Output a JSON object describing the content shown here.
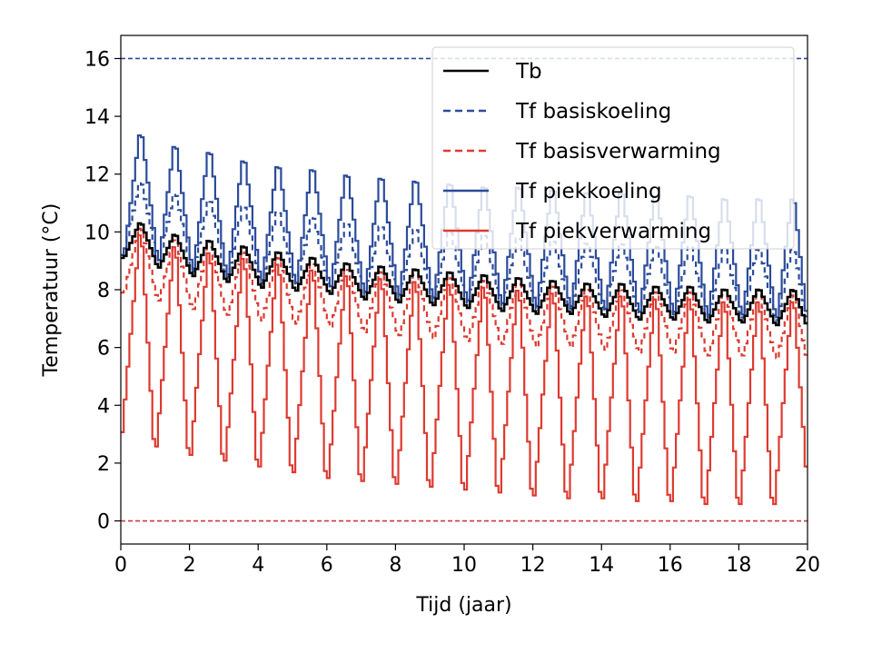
{
  "chart_data": {
    "type": "line",
    "title": "",
    "xlabel": "Tijd (jaar)",
    "ylabel": "Temperatuur (°C)",
    "xlim": [
      0,
      20
    ],
    "ylim": [
      -0.8,
      16.8
    ],
    "xticks": [
      0,
      2,
      4,
      6,
      8,
      10,
      12,
      14,
      16,
      18,
      20
    ],
    "yticks": [
      0,
      2,
      4,
      6,
      8,
      10,
      12,
      14,
      16
    ],
    "grid": false,
    "legend_position": "top-right",
    "limits": [
      {
        "y": 16,
        "color": "#2b4b9b",
        "style": "dashed"
      },
      {
        "y": 0,
        "color": "#cd3a3a",
        "style": "dashed"
      }
    ],
    "series": [
      {
        "name": "Tb",
        "color": "#000000",
        "style": "solid",
        "peak_years": [
          0.58,
          1.58,
          2.58,
          3.58,
          4.58,
          5.58,
          6.58,
          7.58,
          8.58,
          9.58,
          10.58,
          11.58,
          12.58,
          13.58,
          14.58,
          15.58,
          16.58,
          17.58,
          18.58,
          19.58
        ],
        "peak_values": [
          10.4,
          10.0,
          9.8,
          9.6,
          9.4,
          9.2,
          9.0,
          8.9,
          8.8,
          8.7,
          8.6,
          8.5,
          8.4,
          8.3,
          8.3,
          8.2,
          8.2,
          8.1,
          8.1,
          8.1
        ],
        "trough_years": [
          0.1,
          1.1,
          2.1,
          3.1,
          4.1,
          5.1,
          6.1,
          7.1,
          8.1,
          9.1,
          10.1,
          11.1,
          12.1,
          13.1,
          14.1,
          15.1,
          16.1,
          17.1,
          18.1,
          19.1,
          20.0
        ],
        "trough_values": [
          9.1,
          8.7,
          8.4,
          8.2,
          8.0,
          7.9,
          7.8,
          7.6,
          7.5,
          7.4,
          7.3,
          7.2,
          7.1,
          7.1,
          7.0,
          6.9,
          6.9,
          6.8,
          6.8,
          6.7,
          6.7
        ]
      },
      {
        "name": "Tf basiskoeling",
        "color": "#2b4b9b",
        "style": "dashed",
        "peak_years": [
          0.58,
          1.58,
          2.58,
          3.58,
          4.58,
          5.58,
          6.58,
          7.58,
          8.58,
          9.58,
          10.58,
          11.58,
          12.58,
          13.58,
          14.58,
          15.58,
          16.58,
          17.58,
          18.58,
          19.58
        ],
        "peak_values": [
          11.9,
          11.5,
          11.3,
          11.1,
          10.9,
          10.7,
          10.5,
          10.4,
          10.3,
          10.2,
          10.1,
          10.0,
          9.9,
          9.8,
          9.8,
          9.7,
          9.7,
          9.6,
          9.6,
          9.6
        ],
        "trough_years": [
          0.1,
          1.1,
          2.1,
          3.1,
          4.1,
          5.1,
          6.1,
          7.1,
          8.1,
          9.1,
          10.1,
          11.1,
          12.1,
          13.1,
          14.1,
          15.1,
          16.1,
          17.1,
          18.1,
          19.1,
          20.0
        ],
        "trough_values": [
          9.2,
          8.8,
          8.5,
          8.3,
          8.1,
          8.0,
          7.9,
          7.7,
          7.6,
          7.5,
          7.4,
          7.3,
          7.2,
          7.2,
          7.1,
          7.0,
          7.0,
          6.9,
          6.9,
          6.8,
          6.8
        ]
      },
      {
        "name": "Tf basisverwarming",
        "color": "#dd3a30",
        "style": "dashed",
        "peak_years": [
          0.58,
          1.58,
          2.58,
          3.58,
          4.58,
          5.58,
          6.58,
          7.58,
          8.58,
          9.58,
          10.58,
          11.58,
          12.58,
          13.58,
          14.58,
          15.58,
          16.58,
          17.58,
          18.58,
          19.58
        ],
        "peak_values": [
          10.3,
          9.9,
          9.7,
          9.5,
          9.3,
          9.1,
          8.9,
          8.8,
          8.7,
          8.6,
          8.5,
          8.4,
          8.3,
          8.2,
          8.2,
          8.1,
          8.1,
          8.0,
          8.0,
          8.0
        ],
        "trough_years": [
          0.1,
          1.1,
          2.1,
          3.1,
          4.1,
          5.1,
          6.1,
          7.1,
          8.1,
          9.1,
          10.1,
          11.1,
          12.1,
          13.1,
          14.1,
          15.1,
          16.1,
          17.1,
          18.1,
          19.1,
          20.0
        ],
        "trough_values": [
          7.9,
          7.5,
          7.2,
          7.0,
          6.8,
          6.7,
          6.6,
          6.4,
          6.3,
          6.2,
          6.1,
          6.0,
          5.9,
          5.9,
          5.8,
          5.7,
          5.7,
          5.6,
          5.6,
          5.5,
          5.5
        ]
      },
      {
        "name": "Tf piekkoeling",
        "color": "#2b4b9b",
        "style": "solid",
        "peak_years": [
          0.58,
          1.58,
          2.58,
          3.58,
          4.58,
          5.58,
          6.58,
          7.58,
          8.58,
          9.58,
          10.58,
          11.58,
          12.58,
          13.58,
          14.58,
          15.58,
          16.58,
          17.58,
          18.58,
          19.58
        ],
        "peak_values": [
          13.7,
          13.3,
          13.1,
          12.8,
          12.6,
          12.5,
          12.3,
          12.2,
          12.1,
          12.0,
          11.9,
          11.9,
          11.8,
          11.7,
          11.7,
          11.6,
          11.6,
          11.5,
          11.5,
          11.5
        ],
        "trough_years": [
          0.1,
          1.1,
          2.1,
          3.1,
          4.1,
          5.1,
          6.1,
          7.1,
          8.1,
          9.1,
          10.1,
          11.1,
          12.1,
          13.1,
          14.1,
          15.1,
          16.1,
          17.1,
          18.1,
          19.1,
          20.0
        ],
        "trough_values": [
          9.2,
          8.8,
          8.5,
          8.3,
          8.1,
          8.0,
          7.9,
          7.7,
          7.6,
          7.5,
          7.4,
          7.3,
          7.2,
          7.2,
          7.1,
          7.0,
          7.0,
          6.9,
          6.9,
          6.8,
          6.8
        ]
      },
      {
        "name": "Tf piekverwarming",
        "color": "#dd3a30",
        "style": "solid",
        "peak_years": [
          0.58,
          1.58,
          2.58,
          3.58,
          4.58,
          5.58,
          6.58,
          7.58,
          8.58,
          9.58,
          10.58,
          11.58,
          12.58,
          13.58,
          14.58,
          15.58,
          16.58,
          17.58,
          18.58,
          19.58
        ],
        "peak_values": [
          10.4,
          10.0,
          9.8,
          9.6,
          9.4,
          9.2,
          9.0,
          8.9,
          8.8,
          8.7,
          8.6,
          8.5,
          8.4,
          8.3,
          8.3,
          8.2,
          8.2,
          8.1,
          8.1,
          8.1
        ],
        "trough_years": [
          0.0,
          1.0,
          2.0,
          3.0,
          4.0,
          5.0,
          6.0,
          7.0,
          8.0,
          9.0,
          10.0,
          11.0,
          12.0,
          13.0,
          14.0,
          15.0,
          16.0,
          17.0,
          18.0,
          19.0,
          20.0
        ],
        "trough_values": [
          2.5,
          2.0,
          1.7,
          1.5,
          1.3,
          1.1,
          0.9,
          0.8,
          0.7,
          0.6,
          0.5,
          0.4,
          0.3,
          0.2,
          0.2,
          0.1,
          0.1,
          0.0,
          0.0,
          0.0,
          1.2
        ]
      }
    ]
  }
}
